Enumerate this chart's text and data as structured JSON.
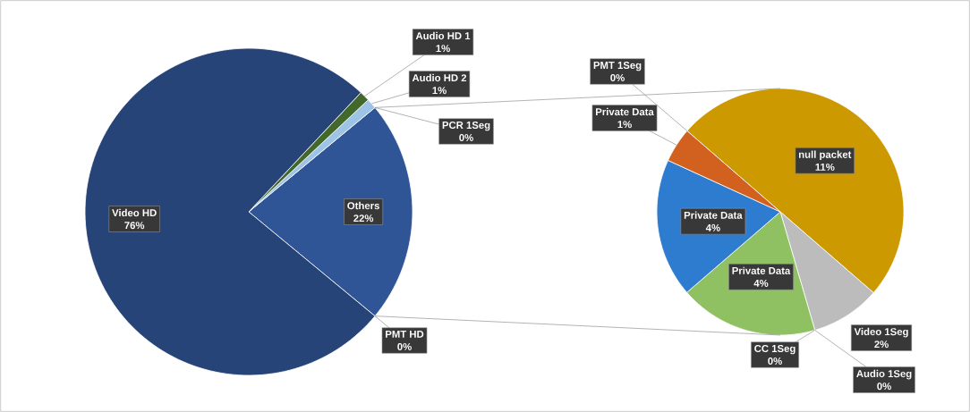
{
  "chart_data": [
    {
      "type": "pie",
      "categories": [
        "Others",
        "PCR 1Seg",
        "Audio HD 2",
        "Audio HD 1",
        "Video HD",
        "PMT HD"
      ],
      "values": [
        22,
        0,
        1,
        1,
        76,
        0
      ],
      "value_labels": [
        "22%",
        "0%",
        "1%",
        "1%",
        "76%",
        "0%"
      ],
      "colors": [
        "#2f5597",
        "#7cafdd",
        "#9dc3e6",
        "#43682b",
        "#264478",
        "#636363"
      ]
    },
    {
      "type": "pie",
      "categories": [
        "null packet",
        "Video 1Seg",
        "Audio 1Seg",
        "CC 1Seg",
        "Private Data",
        "Private Data",
        "Private Data",
        "PMT 1Seg"
      ],
      "values": [
        11,
        2,
        0,
        0,
        4,
        4,
        1,
        0
      ],
      "value_labels": [
        "11%",
        "2%",
        "0%",
        "0%",
        "4%",
        "4%",
        "1%",
        "0%"
      ],
      "colors": [
        "#cc9900",
        "#bcbcbc",
        "#ffc000",
        "#4472c4",
        "#8fc163",
        "#2e7cd0",
        "#d2601e",
        "#7f7f7f"
      ]
    }
  ]
}
